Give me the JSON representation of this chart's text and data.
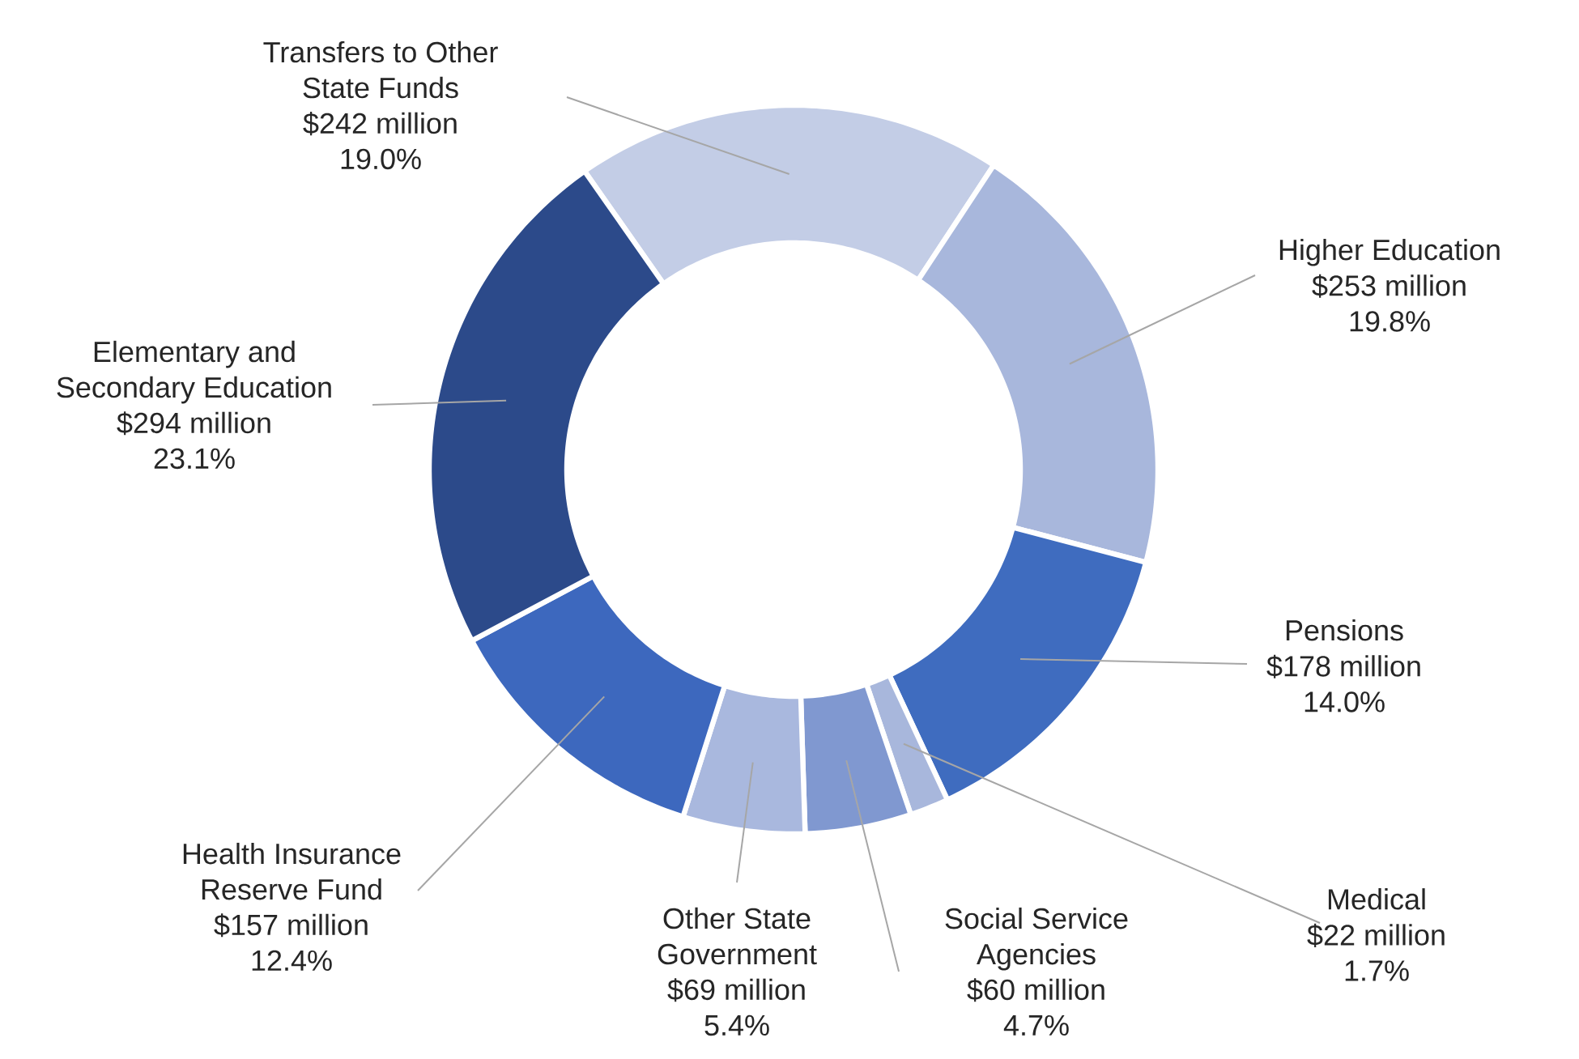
{
  "chart_data": {
    "type": "donut",
    "categories": [
      "Transfers to Other State Funds",
      "Higher Education",
      "Pensions",
      "Medical",
      "Social Service Agencies",
      "Other State Government",
      "Health Insurance Reserve Fund",
      "Elementary and Secondary Education"
    ],
    "values": [
      242,
      253,
      178,
      22,
      60,
      69,
      157,
      294
    ],
    "value_labels": [
      "$242 million",
      "$253 million",
      "$178 million",
      "$22 million",
      "$60 million",
      "$69 million",
      "$157 million",
      "$294 million"
    ],
    "annotations": [
      {
        "text": "19.0%",
        "x": "Transfers to Other State Funds"
      },
      {
        "text": "19.8%",
        "x": "Higher Education"
      },
      {
        "text": "14.0%",
        "x": "Pensions"
      },
      {
        "text": "1.7%",
        "x": "Medical"
      },
      {
        "text": "4.7%",
        "x": "Social Service Agencies"
      },
      {
        "text": "5.4%",
        "x": "Other State Government"
      },
      {
        "text": "12.4%",
        "x": "Health Insurance Reserve Fund"
      },
      {
        "text": "23.1%",
        "x": "Elementary and Secondary Education"
      }
    ],
    "colors": [
      "#c3cde6",
      "#a8b7dc",
      "#3f6cbf",
      "#a8b7dc",
      "#8098d0",
      "#a9b8de",
      "#3d68be",
      "#2c4a8a"
    ]
  }
}
